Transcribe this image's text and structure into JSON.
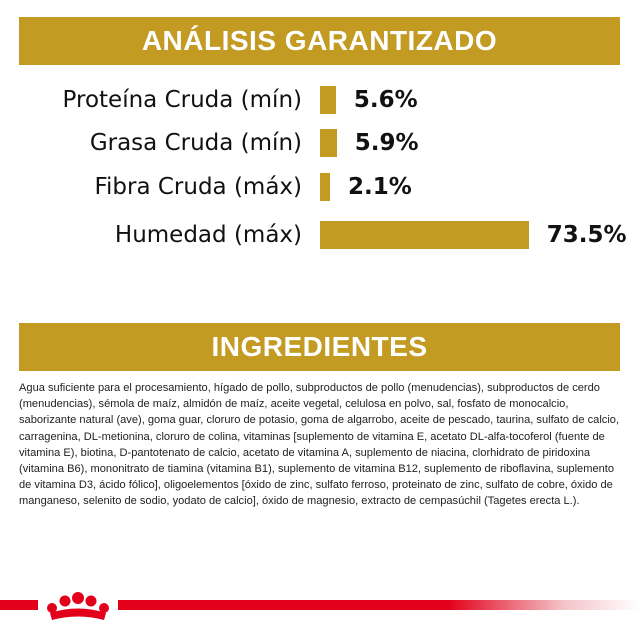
{
  "analysis": {
    "title": "ANÁLISIS GARANTIZADO",
    "rows": [
      {
        "label": "Proteína Cruda (mín)",
        "value_text": "5.6%",
        "value": 5.6
      },
      {
        "label": "Grasa Cruda (mín)",
        "value_text": "5.9%",
        "value": 5.9
      },
      {
        "label": "Fibra Cruda (máx)",
        "value_text": "2.1%",
        "value": 2.1
      },
      {
        "label": "Humedad (máx)",
        "value_text": "73.5%",
        "value": 73.5
      }
    ]
  },
  "ingredients": {
    "title": "INGREDIENTES",
    "text": "Agua suficiente para el procesamiento, hígado de pollo, subproductos de pollo (menudencias), subproductos de cerdo (menudencias), sémola de maíz, almidón de maíz, aceite vegetal, celulosa en polvo, sal, fosfato de monocalcio, saborizante natural (ave), goma guar, cloruro de potasio, goma de algarrobo, aceite de pescado, taurina, sulfato de calcio, carragenina, DL-metionina, cloruro de colina, vitaminas [suplemento de vitamina E, acetato DL-alfa-tocoferol (fuente de vitamina E), biotina, D-pantotenato de calcio, acetato de vitamina A, suplemento de niacina, clorhidrato de piridoxina (vitamina B6), mononitrato de tiamina (vitamina B1), suplemento de vitamina B12, suplemento de riboflavina, suplemento de vitamina D3, ácido fólico], oligoelementos [óxido de zinc, sulfato ferroso, proteinato de zinc, sulfato de cobre, óxido de manganeso, selenito de sodio, yodato de calcio], óxido de magnesio, extracto de cempasúchil (Tagetes erecta L.)."
  },
  "colors": {
    "accent_gold": "#c39a22",
    "brand_red": "#e2001a"
  },
  "logo": {
    "icon": "crown-icon"
  }
}
